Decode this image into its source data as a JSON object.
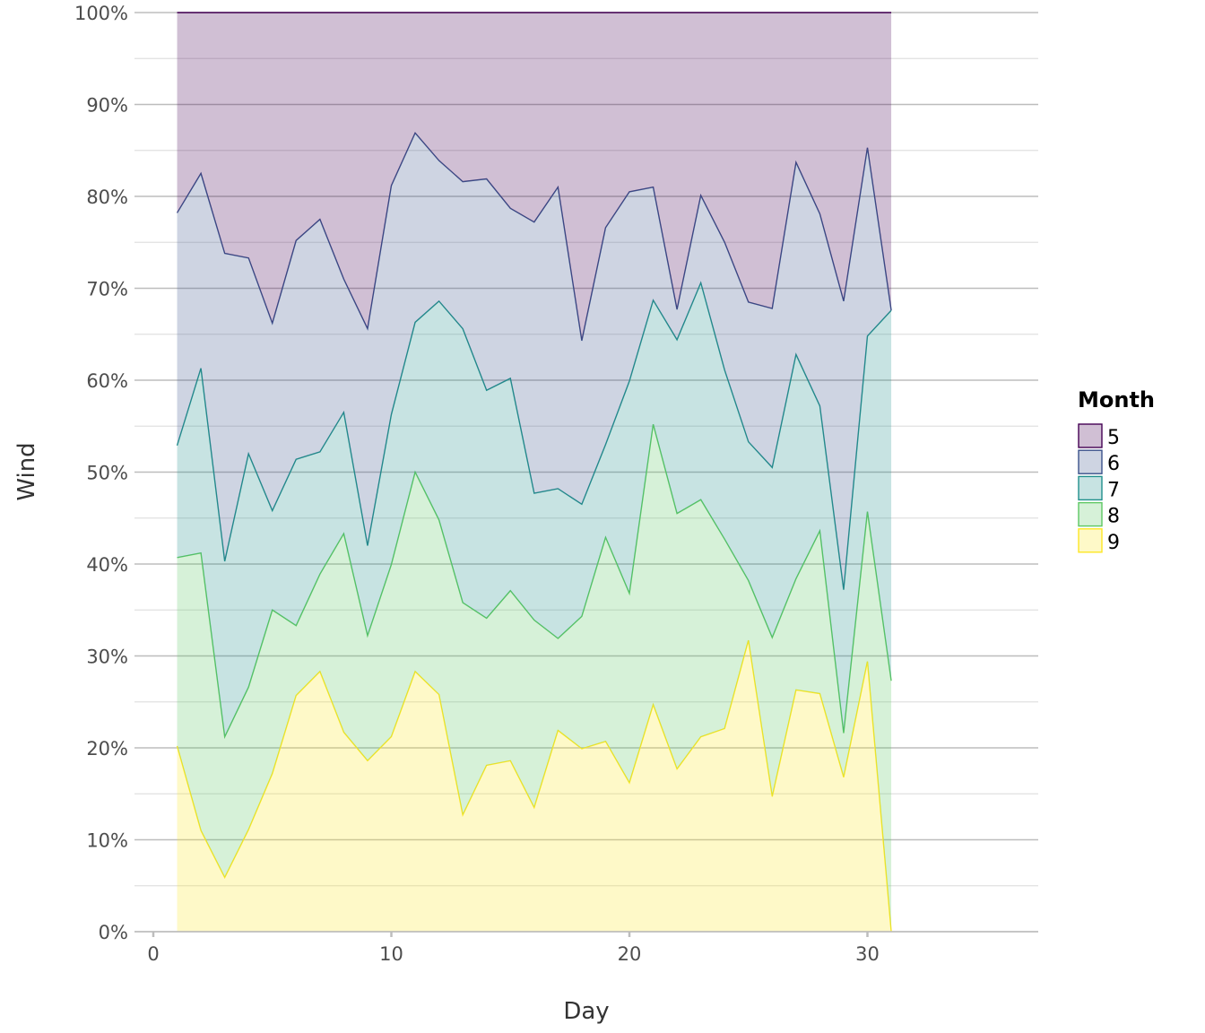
{
  "chart_data": {
    "type": "area",
    "stacking": "percent",
    "xlabel": "Day",
    "ylabel": "Wind",
    "xlim": [
      -0.5,
      37
    ],
    "ylim": [
      0,
      100
    ],
    "x_ticks": [
      0,
      10,
      20,
      30
    ],
    "y_ticks": [
      0,
      10,
      20,
      30,
      40,
      50,
      60,
      70,
      80,
      90,
      100
    ],
    "y_tick_labels": [
      "0%",
      "10%",
      "20%",
      "30%",
      "40%",
      "50%",
      "60%",
      "70%",
      "80%",
      "90%",
      "100%"
    ],
    "grid": true,
    "legend": {
      "title": "Month",
      "position": "right"
    },
    "x": [
      1,
      2,
      3,
      4,
      5,
      6,
      7,
      8,
      9,
      10,
      11,
      12,
      13,
      14,
      15,
      16,
      17,
      18,
      19,
      20,
      21,
      22,
      23,
      24,
      25,
      26,
      27,
      28,
      29,
      30,
      31
    ],
    "series": [
      {
        "name": "5",
        "color": "#440154",
        "values": [
          21.8,
          17.5,
          26.2,
          26.7,
          33.8,
          24.8,
          22.5,
          29.0,
          34.4,
          18.9,
          13.1,
          16.1,
          18.4,
          18.1,
          21.3,
          22.8,
          19.0,
          35.7,
          23.4,
          19.5,
          19.0,
          32.3,
          19.9,
          25.0,
          31.5,
          32.2,
          16.3,
          21.9,
          31.4,
          14.7,
          32.4
        ]
      },
      {
        "name": "6",
        "color": "#3B528B",
        "values": [
          25.3,
          21.2,
          33.5,
          21.3,
          20.4,
          23.8,
          25.3,
          14.5,
          23.6,
          25.0,
          20.6,
          15.3,
          16.0,
          23.0,
          18.5,
          29.5,
          32.8,
          17.8,
          23.6,
          20.6,
          12.3,
          3.3,
          9.5,
          13.9,
          15.2,
          17.3,
          20.9,
          20.9,
          31.4,
          20.5,
          0.0
        ]
      },
      {
        "name": "7",
        "color": "#21908C",
        "values": [
          12.2,
          20.1,
          19.1,
          25.4,
          10.8,
          18.1,
          13.3,
          13.2,
          9.8,
          16.4,
          16.3,
          23.8,
          29.8,
          24.8,
          23.1,
          13.8,
          16.3,
          12.2,
          10.1,
          23.1,
          13.5,
          18.9,
          23.6,
          18.4,
          15.1,
          18.5,
          24.4,
          13.6,
          15.6,
          19.1,
          40.3
        ]
      },
      {
        "name": "8",
        "color": "#5DC863",
        "values": [
          20.5,
          30.2,
          15.3,
          15.5,
          17.8,
          7.6,
          10.6,
          21.6,
          13.6,
          18.8,
          21.7,
          19.0,
          23.1,
          16.0,
          18.5,
          20.4,
          10.0,
          14.4,
          22.2,
          20.6,
          30.5,
          27.8,
          25.8,
          20.6,
          6.5,
          17.3,
          12.1,
          17.7,
          4.8,
          16.3,
          27.3
        ]
      },
      {
        "name": "9",
        "color": "#FDE725",
        "values": [
          20.2,
          11.0,
          5.9,
          11.1,
          17.2,
          25.7,
          28.3,
          21.7,
          18.6,
          21.3,
          28.3,
          25.8,
          12.7,
          18.1,
          18.6,
          13.5,
          21.9,
          19.9,
          20.7,
          16.2,
          24.7,
          17.7,
          21.2,
          22.1,
          31.7,
          14.7,
          26.3,
          25.9,
          16.8,
          29.4,
          0.0
        ]
      }
    ]
  }
}
